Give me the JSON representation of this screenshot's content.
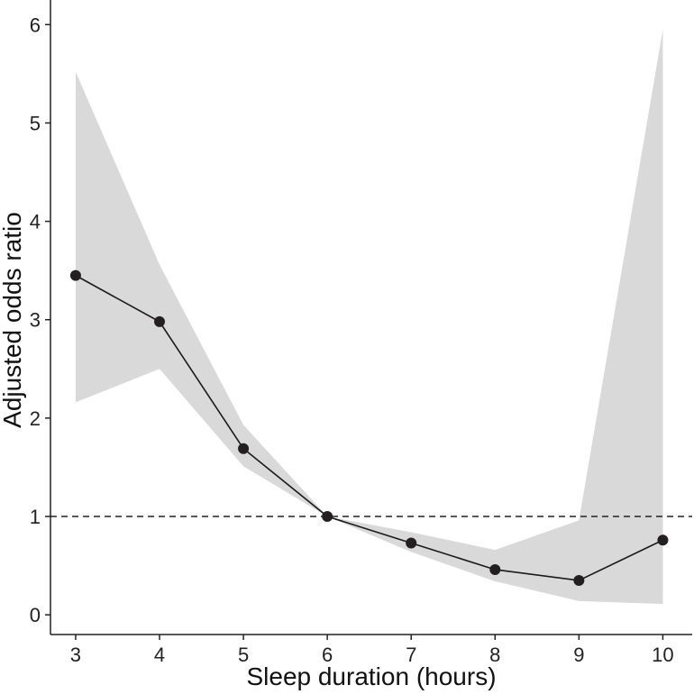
{
  "chart_data": {
    "type": "line",
    "title": "",
    "xlabel": "Sleep duration (hours)",
    "ylabel": "Adjusted odds ratio",
    "xlim": [
      2.7,
      10.35
    ],
    "ylim": [
      -0.2,
      6.25
    ],
    "x_ticks": [
      3,
      4,
      5,
      6,
      7,
      8,
      9,
      10
    ],
    "y_ticks": [
      0,
      1,
      2,
      3,
      4,
      5,
      6
    ],
    "reference_line": {
      "y": 1,
      "style": "dashed"
    },
    "series": [
      {
        "name": "Adjusted odds ratio",
        "x": [
          3,
          4,
          5,
          6,
          7,
          8,
          9,
          10
        ],
        "y": [
          3.45,
          2.98,
          1.69,
          1.0,
          0.73,
          0.46,
          0.35,
          0.76
        ],
        "ci_lower": [
          2.16,
          2.5,
          1.51,
          1.0,
          0.64,
          0.34,
          0.14,
          0.11
        ],
        "ci_upper": [
          5.52,
          3.56,
          1.93,
          1.0,
          0.84,
          0.66,
          0.96,
          5.95
        ]
      }
    ],
    "grid": false,
    "colors": {
      "line": "#1a1a1a",
      "marker": "#231f20",
      "ci_band": "#d9d9d9",
      "axis": "#222222"
    }
  }
}
